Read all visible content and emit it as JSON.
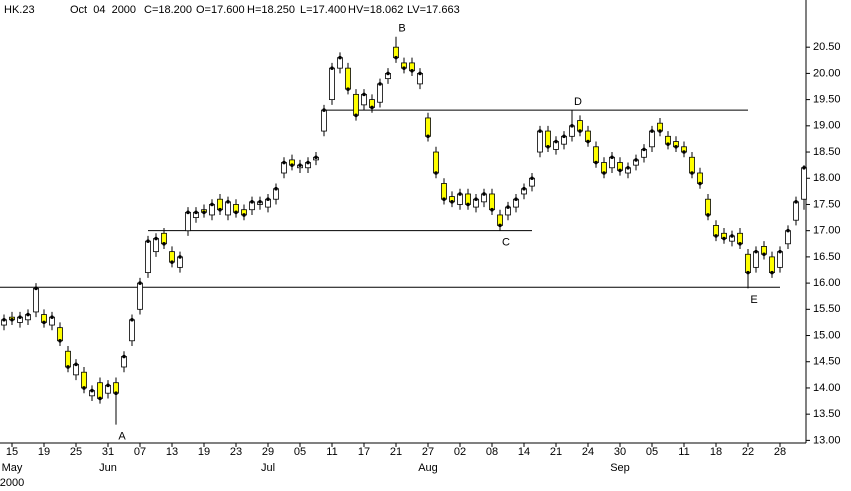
{
  "chart_data": {
    "type": "candlestick",
    "info": [
      "HK.23",
      "Oct  04  2000",
      "C=18.200",
      "O=17.600",
      "H=18.250",
      "L=17.400",
      "HV=18.062",
      "LV=17.663"
    ],
    "categories": [
      null,
      "15",
      null,
      null,
      null,
      "19",
      null,
      null,
      null,
      "25",
      null,
      null,
      null,
      "31",
      null,
      null,
      null,
      "07",
      null,
      null,
      null,
      "13",
      null,
      null,
      null,
      "19",
      null,
      null,
      null,
      "23",
      null,
      null,
      null,
      "29",
      null,
      null,
      null,
      "05",
      null,
      null,
      null,
      "11",
      null,
      null,
      null,
      "17",
      null,
      null,
      null,
      "21",
      null,
      null,
      null,
      "27",
      null,
      null,
      null,
      "02",
      null,
      null,
      null,
      "08",
      null,
      null,
      null,
      "14",
      null,
      null,
      null,
      "21",
      null,
      null,
      null,
      "24",
      null,
      null,
      null,
      "30",
      null,
      null,
      null,
      "05",
      null,
      null,
      null,
      "11",
      null,
      null,
      null,
      "18",
      null,
      null,
      null,
      "22",
      null,
      null,
      null,
      "28",
      null,
      null,
      null
    ],
    "months": [
      null,
      "May",
      null,
      null,
      null,
      null,
      null,
      null,
      null,
      null,
      null,
      null,
      null,
      "Jun",
      null,
      null,
      null,
      null,
      null,
      null,
      null,
      null,
      null,
      null,
      null,
      null,
      null,
      null,
      null,
      null,
      null,
      null,
      null,
      "Jul",
      null,
      null,
      null,
      null,
      null,
      null,
      null,
      null,
      null,
      null,
      null,
      null,
      null,
      null,
      null,
      null,
      null,
      null,
      null,
      "Aug",
      null,
      null,
      null,
      null,
      null,
      null,
      null,
      null,
      null,
      null,
      null,
      null,
      null,
      null,
      null,
      null,
      null,
      null,
      null,
      null,
      null,
      null,
      null,
      "Sep",
      null,
      null,
      null,
      null,
      null,
      null,
      null,
      null,
      null,
      null,
      null,
      null,
      null,
      null,
      null,
      null,
      null,
      null,
      null,
      null,
      null,
      null,
      null
    ],
    "year_label": "2000",
    "open": [
      15.2,
      15.35,
      15.25,
      15.3,
      15.45,
      15.4,
      15.2,
      15.15,
      14.7,
      14.25,
      14.3,
      13.85,
      14.1,
      13.9,
      14.1,
      14.4,
      14.9,
      15.5,
      16.2,
      16.6,
      16.95,
      16.6,
      16.3,
      17.0,
      17.25,
      17.4,
      17.3,
      17.6,
      17.3,
      17.5,
      17.4,
      17.4,
      17.5,
      17.45,
      17.6,
      18.1,
      18.35,
      18.2,
      18.2,
      18.35,
      18.9,
      19.5,
      20.1,
      20.1,
      19.6,
      19.4,
      19.5,
      19.45,
      19.9,
      20.5,
      20.2,
      20.2,
      19.8,
      19.15,
      18.5,
      17.9,
      17.65,
      17.5,
      17.7,
      17.45,
      17.55,
      17.7,
      17.3,
      17.3,
      17.45,
      17.7,
      17.85,
      18.5,
      18.9,
      18.55,
      18.65,
      18.8,
      19.1,
      18.9,
      18.6,
      18.3,
      18.2,
      18.3,
      18.1,
      18.25,
      18.4,
      18.6,
      19.05,
      18.8,
      18.7,
      18.6,
      18.4,
      18.1,
      17.6,
      17.1,
      16.95,
      16.8,
      16.95,
      16.55,
      16.3,
      16.7,
      16.5,
      16.3,
      16.75,
      17.2,
      17.6
    ],
    "high": [
      15.4,
      15.45,
      15.45,
      15.5,
      16.0,
      15.5,
      15.45,
      15.25,
      14.8,
      14.55,
      14.4,
      14.05,
      14.2,
      14.15,
      14.2,
      14.7,
      15.4,
      16.1,
      16.9,
      16.95,
      17.05,
      16.7,
      16.6,
      17.45,
      17.45,
      17.5,
      17.6,
      17.7,
      17.65,
      17.6,
      17.5,
      17.65,
      17.65,
      17.7,
      17.9,
      18.4,
      18.45,
      18.35,
      18.4,
      18.5,
      19.4,
      20.2,
      20.4,
      20.2,
      19.7,
      19.7,
      19.6,
      19.9,
      20.1,
      20.7,
      20.3,
      20.3,
      20.1,
      19.25,
      18.6,
      18.0,
      17.75,
      17.8,
      17.8,
      17.7,
      17.8,
      17.8,
      17.4,
      17.55,
      17.7,
      17.9,
      18.1,
      19.0,
      19.0,
      18.8,
      18.9,
      19.3,
      19.2,
      19.0,
      18.7,
      18.4,
      18.5,
      18.4,
      18.3,
      18.45,
      18.65,
      19.0,
      19.15,
      18.9,
      18.8,
      18.7,
      18.5,
      18.2,
      17.7,
      17.2,
      17.05,
      17.0,
      17.05,
      16.65,
      16.7,
      16.8,
      16.6,
      16.7,
      17.1,
      17.65,
      18.25
    ],
    "low": [
      15.1,
      15.2,
      15.15,
      15.2,
      15.35,
      15.15,
      15.1,
      14.8,
      14.3,
      14.15,
      13.9,
      13.75,
      13.7,
      13.8,
      13.3,
      14.3,
      14.8,
      15.4,
      16.1,
      16.5,
      16.65,
      16.3,
      16.2,
      16.9,
      17.15,
      17.25,
      17.2,
      17.3,
      17.2,
      17.25,
      17.2,
      17.3,
      17.4,
      17.35,
      17.5,
      18.0,
      18.15,
      18.1,
      18.1,
      18.25,
      18.8,
      19.4,
      20.0,
      19.6,
      19.1,
      19.3,
      19.25,
      19.35,
      19.8,
      20.2,
      20.0,
      19.95,
      19.7,
      18.7,
      18.0,
      17.5,
      17.45,
      17.4,
      17.4,
      17.35,
      17.45,
      17.3,
      17.0,
      17.2,
      17.35,
      17.6,
      17.75,
      18.4,
      18.5,
      18.45,
      18.55,
      18.7,
      18.8,
      18.6,
      18.2,
      18.0,
      18.1,
      18.05,
      18.0,
      18.15,
      18.3,
      18.5,
      18.8,
      18.55,
      18.5,
      18.4,
      18.0,
      17.8,
      17.2,
      16.8,
      16.75,
      16.7,
      16.65,
      15.9,
      16.2,
      16.45,
      16.1,
      16.2,
      16.65,
      17.1,
      17.4
    ],
    "close": [
      15.3,
      15.3,
      15.35,
      15.4,
      15.9,
      15.25,
      15.35,
      14.9,
      14.4,
      14.45,
      14.0,
      13.95,
      13.8,
      14.05,
      13.9,
      14.6,
      15.3,
      16.0,
      16.8,
      16.85,
      16.75,
      16.4,
      16.5,
      17.35,
      17.35,
      17.35,
      17.5,
      17.4,
      17.55,
      17.35,
      17.3,
      17.55,
      17.55,
      17.6,
      17.8,
      18.3,
      18.25,
      18.25,
      18.3,
      18.4,
      19.3,
      20.1,
      20.3,
      19.7,
      19.2,
      19.6,
      19.35,
      19.8,
      20.0,
      20.3,
      20.1,
      20.05,
      20.0,
      18.8,
      18.1,
      17.6,
      17.55,
      17.7,
      17.5,
      17.6,
      17.7,
      17.4,
      17.1,
      17.45,
      17.6,
      17.8,
      18.0,
      18.9,
      18.6,
      18.7,
      18.8,
      19.0,
      18.9,
      18.7,
      18.3,
      18.1,
      18.4,
      18.15,
      18.2,
      18.35,
      18.55,
      18.9,
      18.9,
      18.65,
      18.6,
      18.5,
      18.1,
      17.9,
      17.3,
      16.9,
      16.85,
      16.9,
      16.75,
      16.2,
      16.6,
      16.55,
      16.2,
      16.6,
      17.0,
      17.55,
      18.2
    ],
    "up_color": "#ffffff",
    "down_color": "#ffff00",
    "hlines": [
      {
        "value": 19.3,
        "from": 40,
        "to": 93
      },
      {
        "value": 17.0,
        "from": 18,
        "to": 66
      },
      {
        "value": 15.92,
        "from": 0,
        "to": 97
      }
    ],
    "annotations": [
      {
        "text": "A",
        "at": 14,
        "side": "below"
      },
      {
        "text": "B",
        "at": 49,
        "side": "above"
      },
      {
        "text": "C",
        "at": 62,
        "side": "below"
      },
      {
        "text": "D",
        "at": 71,
        "side": "above"
      },
      {
        "text": "E",
        "at": 93,
        "side": "below"
      }
    ],
    "ylim": [
      12.95,
      21.4
    ],
    "yticks": [
      {
        "value": 13,
        "label": "13.00"
      },
      {
        "value": 13.5,
        "label": "13.50"
      },
      {
        "value": 14,
        "label": "14.00"
      },
      {
        "value": 14.5,
        "label": "14.50"
      },
      {
        "value": 15,
        "label": "15.00"
      },
      {
        "value": 15.5,
        "label": "15.50"
      },
      {
        "value": 16,
        "label": "16.00"
      },
      {
        "value": 16.5,
        "label": "16.50"
      },
      {
        "value": 17,
        "label": "17.00"
      },
      {
        "value": 17.5,
        "label": "17.50"
      },
      {
        "value": 18,
        "label": "18.00"
      },
      {
        "value": 18.5,
        "label": "18.50"
      },
      {
        "value": 19,
        "label": "19.00"
      },
      {
        "value": 19.5,
        "label": "19.50"
      },
      {
        "value": 20,
        "label": "20.00"
      },
      {
        "value": 20.5,
        "label": "20.50"
      }
    ],
    "grid": false
  }
}
